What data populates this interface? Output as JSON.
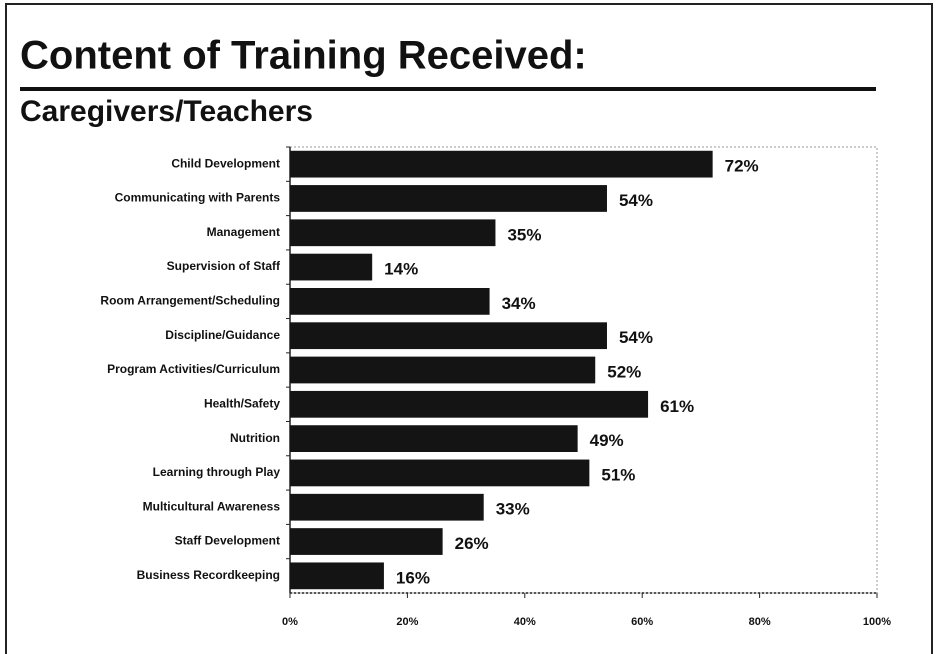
{
  "chart_data": {
    "type": "bar",
    "orientation": "horizontal",
    "title": "Content of Training Received:",
    "subtitle": "Caregivers/Teachers",
    "categories": [
      "Child Development",
      "Communicating with Parents",
      "Management",
      "Supervision of Staff",
      "Room Arrangement/Scheduling",
      "Discipline/Guidance",
      "Program Activities/Curriculum",
      "Health/Safety",
      "Nutrition",
      "Learning through Play",
      "Multicultural Awareness",
      "Staff Development",
      "Business Recordkeeping"
    ],
    "values": [
      72,
      54,
      35,
      14,
      34,
      54,
      52,
      61,
      49,
      51,
      33,
      26,
      16
    ],
    "value_labels": [
      "72%",
      "54%",
      "35%",
      "14%",
      "34%",
      "54%",
      "52%",
      "61%",
      "49%",
      "51%",
      "33%",
      "26%",
      "16%"
    ],
    "color": "#141414",
    "xlim": [
      0,
      100
    ],
    "xticks": [
      {
        "value": 0,
        "label": "0%"
      },
      {
        "value": 20,
        "label": "20%"
      },
      {
        "value": 40,
        "label": "40%"
      },
      {
        "value": 60,
        "label": "60%"
      },
      {
        "value": 80,
        "label": "80%"
      },
      {
        "value": 100,
        "label": "100%"
      }
    ]
  }
}
